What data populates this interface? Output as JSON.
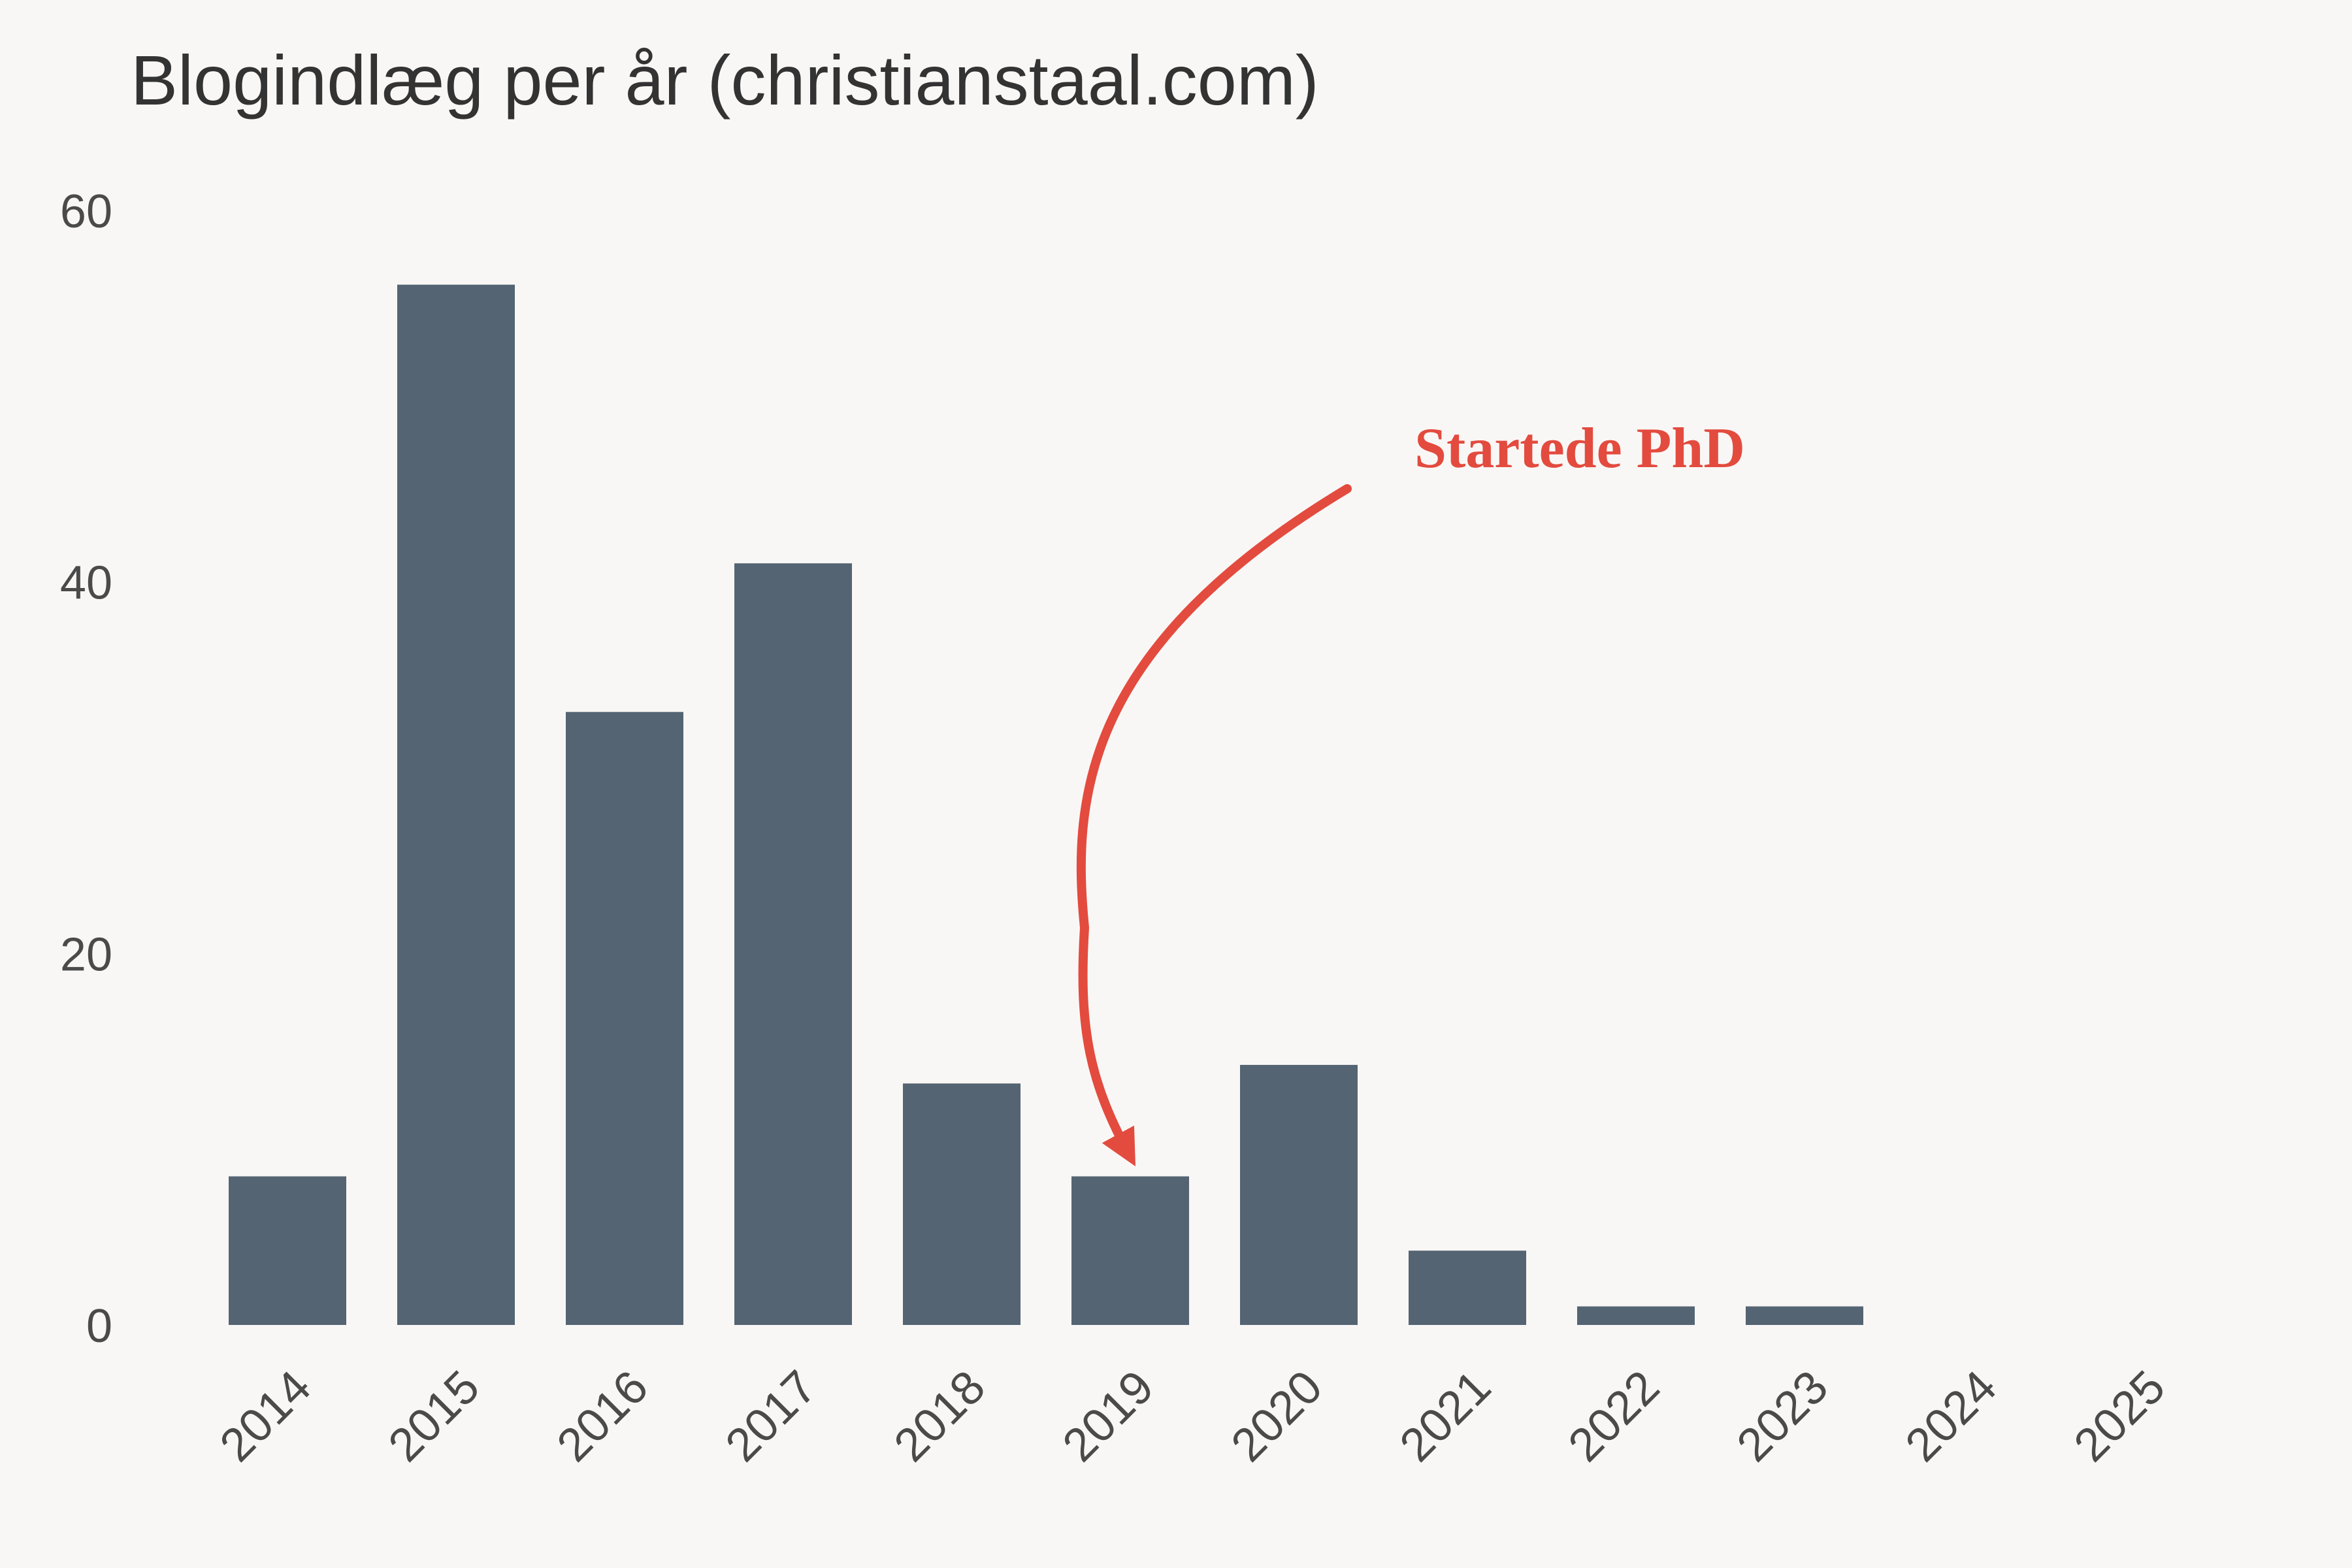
{
  "chart_data": {
    "type": "bar",
    "title": "Blogindlæg per år (christianstaal.com)",
    "xlabel": "",
    "ylabel": "",
    "categories": [
      "2014",
      "2015",
      "2016",
      "2017",
      "2018",
      "2019",
      "2020",
      "2021",
      "2022",
      "2023",
      "2024",
      "2025"
    ],
    "values": [
      8,
      56,
      33,
      41,
      13,
      8,
      14,
      4,
      1,
      1,
      0,
      0
    ],
    "ylim": [
      0,
      60
    ],
    "yticks": [
      "0",
      "20",
      "40",
      "60"
    ],
    "grid": false,
    "legend": "none",
    "bar_color": "#546473",
    "annotation": {
      "text": "Startede PhD",
      "target_category": "2019",
      "color": "#e34b3f"
    }
  }
}
